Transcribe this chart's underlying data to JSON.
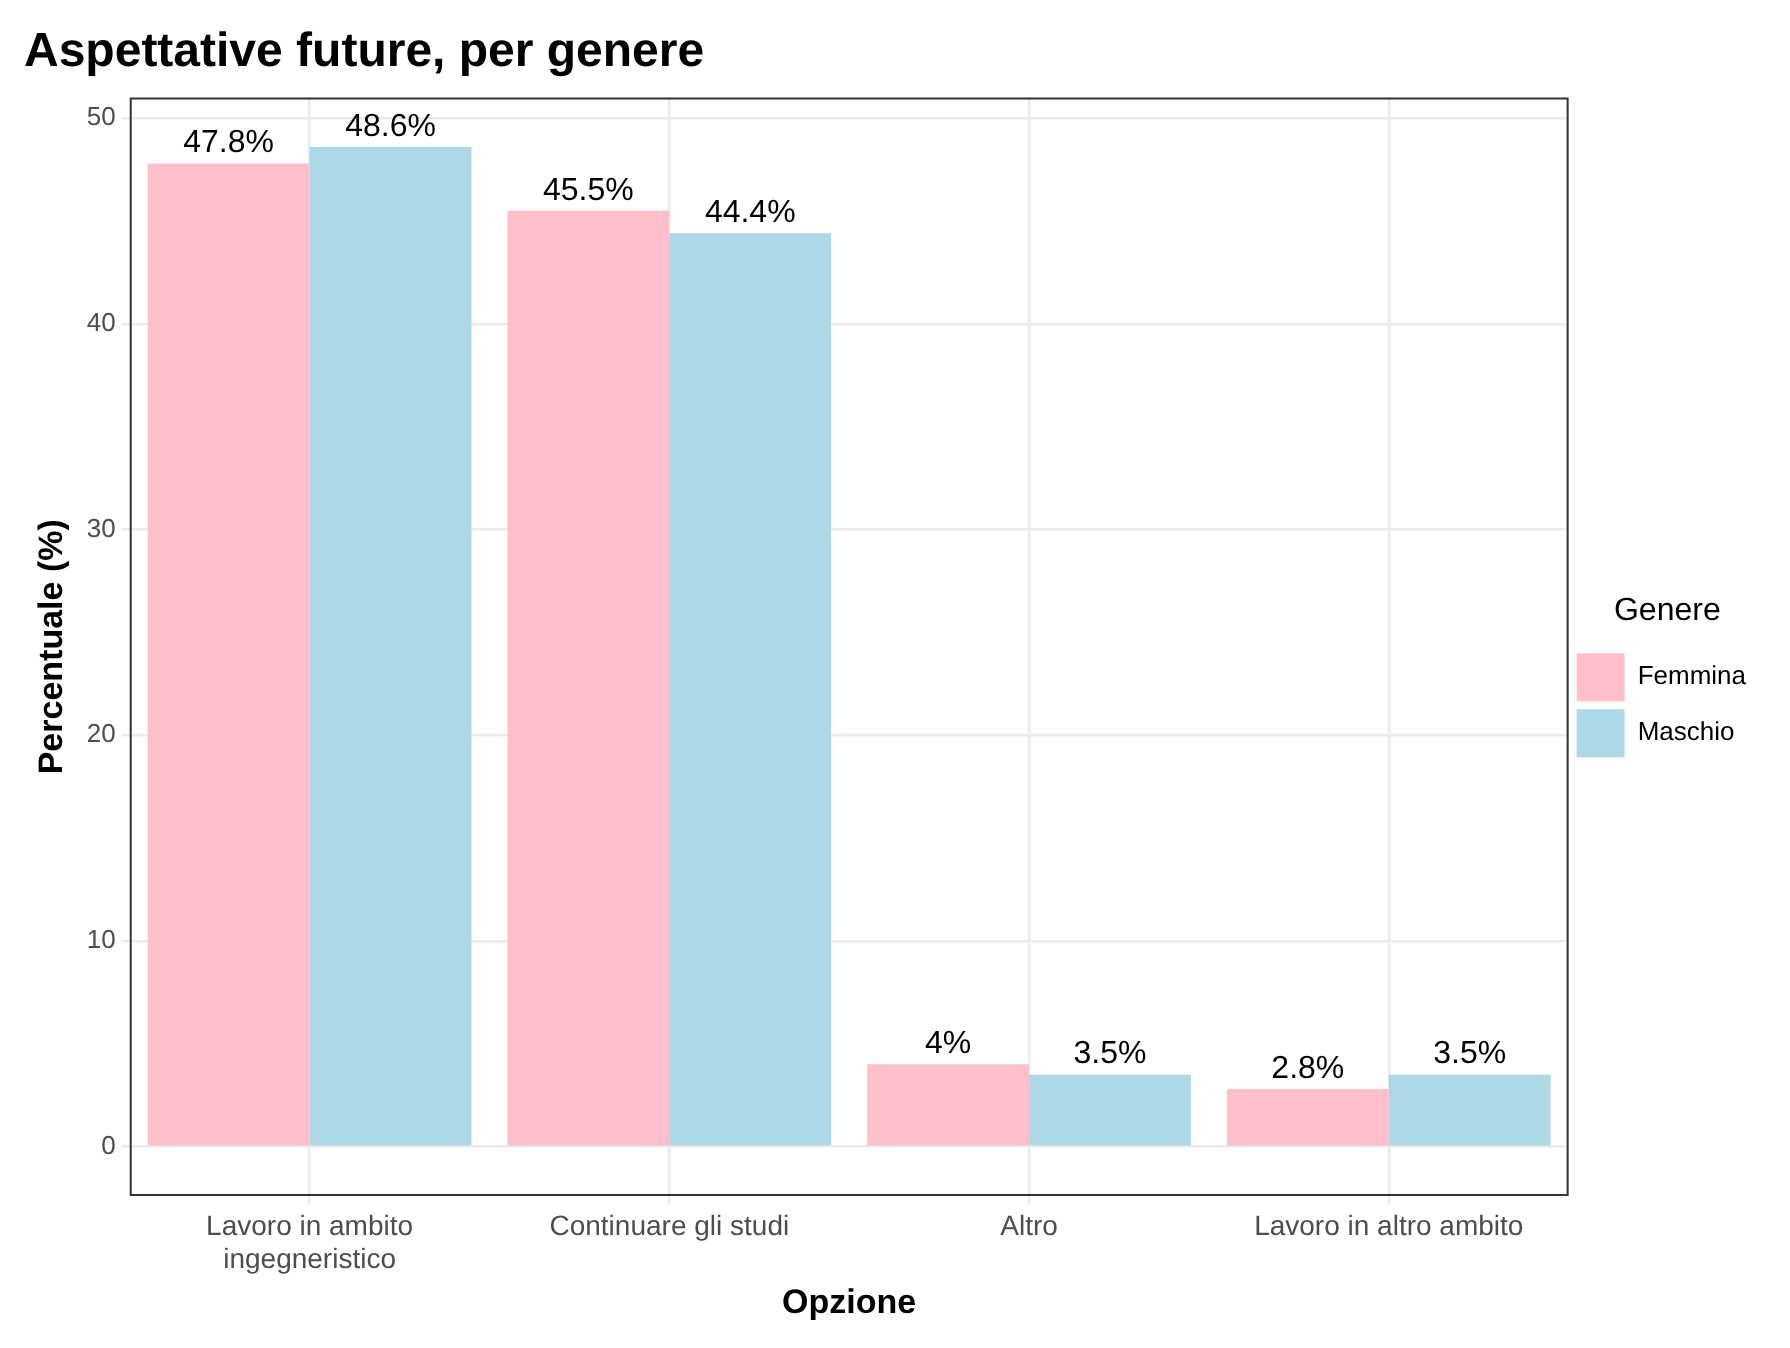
{
  "chart_data": {
    "type": "bar",
    "title": "Aspettative future, per genere",
    "xlabel": "Opzione",
    "ylabel": "Percentuale (%)",
    "legend_title": "Genere",
    "categories": [
      "Lavoro in ambito ingegneristico",
      "Continuare gli studi",
      "Altro",
      "Lavoro in altro ambito"
    ],
    "series": [
      {
        "name": "Femmina",
        "color": "#ffc0cb",
        "values": [
          47.8,
          45.5,
          4,
          2.8
        ],
        "value_labels": [
          "47.8%",
          "45.5%",
          "4%",
          "2.8%"
        ]
      },
      {
        "name": "Maschio",
        "color": "#add8e6",
        "values": [
          48.6,
          44.4,
          3.5,
          3.5
        ],
        "value_labels": [
          "48.6%",
          "44.4%",
          "3.5%",
          "3.5%"
        ]
      }
    ],
    "ylim": [
      -2.4,
      51
    ],
    "yticks": [
      0,
      10,
      20,
      30,
      40,
      50
    ],
    "grid": true,
    "legend": "right"
  }
}
